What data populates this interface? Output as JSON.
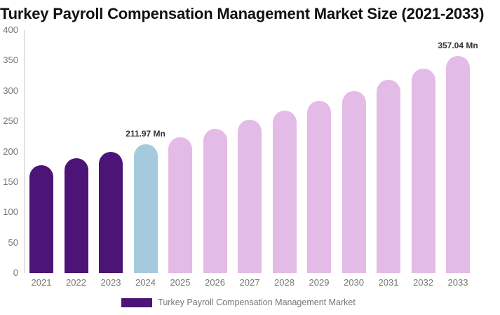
{
  "title": "Turkey Payroll Compensation Management Market Size (2021-2033)",
  "chart_data": {
    "type": "bar",
    "title": "Turkey Payroll Compensation Management Market Size (2021-2033)",
    "categories": [
      "2021",
      "2022",
      "2023",
      "2024",
      "2025",
      "2026",
      "2027",
      "2028",
      "2029",
      "2030",
      "2031",
      "2032",
      "2033"
    ],
    "values": [
      178,
      189,
      200,
      211.97,
      224,
      238,
      252,
      267,
      283,
      300,
      318,
      337,
      357.04
    ],
    "unit": "Mn",
    "data_labels": {
      "2024": "211.97 Mn",
      "2033": "357.04 Mn"
    },
    "bar_colors": [
      "#4c1477",
      "#4c1477",
      "#4c1477",
      "#a5cade",
      "#e4bbe6",
      "#e4bbe6",
      "#e4bbe6",
      "#e4bbe6",
      "#e4bbe6",
      "#e4bbe6",
      "#e4bbe6",
      "#e4bbe6",
      "#e4bbe6"
    ],
    "xlabel": "",
    "ylabel": "",
    "ylim": [
      0,
      400
    ],
    "yticks": [
      0,
      50,
      100,
      150,
      200,
      250,
      300,
      350,
      400
    ],
    "grid": false,
    "legend_position": "bottom"
  },
  "legend": {
    "label": "Turkey Payroll Compensation Management Market",
    "swatch_color": "#4c1477"
  },
  "colors": {
    "historical_bar": "#4c1477",
    "highlight_bar": "#a5cade",
    "forecast_bar": "#e4bbe6",
    "title_text": "#111111",
    "axis_text": "#757575",
    "data_label_text": "#333333",
    "axis_line": "#cccccc"
  }
}
